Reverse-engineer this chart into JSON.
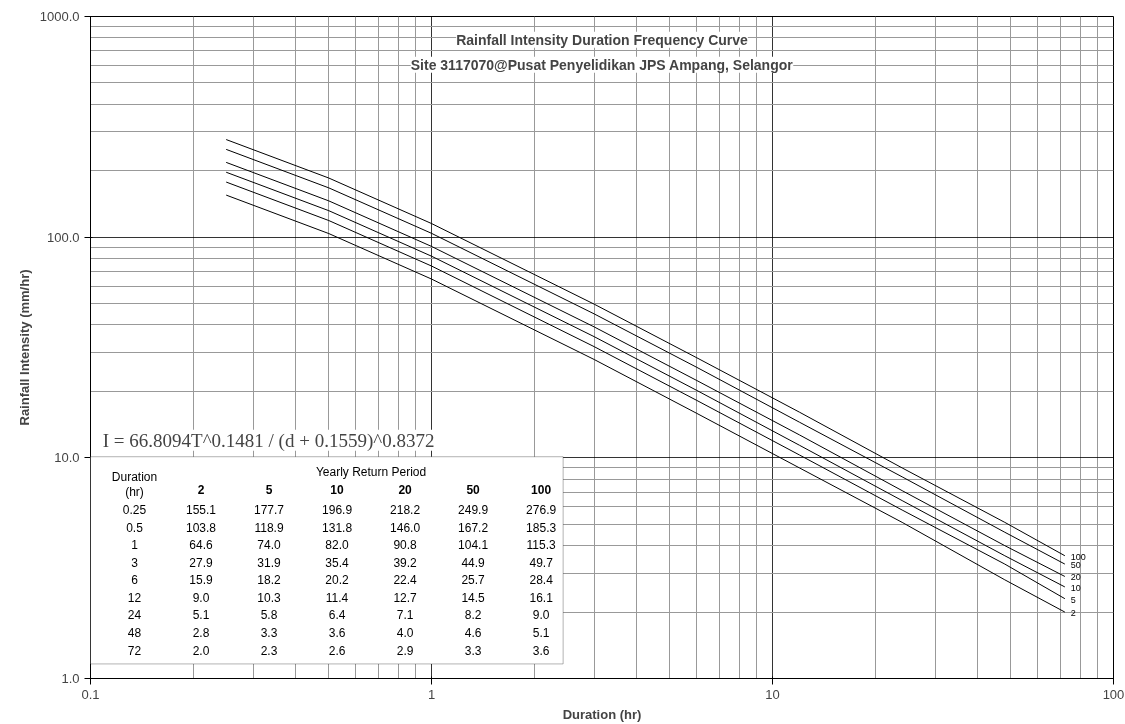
{
  "chart_data": [
    {
      "type": "line",
      "title": "Rainfall Intensity Duration Frequency Curve",
      "subtitle": "Site 3117070@Pusat Penyelidikan JPS Ampang, Selangor",
      "xlabel": "Duration (hr)",
      "ylabel": "Rainfall Intensity (mm/hr)",
      "annotations": [
        "I = 66.8094T^0.1481 / (d + 0.1559)^0.8372"
      ],
      "x": [
        0.25,
        0.5,
        1,
        3,
        6,
        12,
        24,
        48,
        72
      ],
      "series": [
        {
          "name": "2",
          "color": "#000000",
          "values": [
            155.1,
            103.8,
            64.6,
            27.9,
            15.9,
            9.0,
            5.1,
            2.8,
            2.0
          ]
        },
        {
          "name": "5",
          "color": "#000000",
          "values": [
            177.7,
            118.9,
            74.0,
            31.9,
            18.2,
            10.3,
            5.8,
            3.3,
            2.3
          ]
        },
        {
          "name": "10",
          "color": "#000000",
          "values": [
            196.9,
            131.8,
            82.0,
            35.4,
            20.2,
            11.4,
            6.4,
            3.6,
            2.6
          ]
        },
        {
          "name": "20",
          "color": "#000000",
          "values": [
            218.2,
            146.0,
            90.8,
            39.2,
            22.4,
            12.7,
            7.1,
            4.0,
            2.9
          ]
        },
        {
          "name": "50",
          "color": "#000000",
          "values": [
            249.9,
            167.2,
            104.1,
            44.9,
            25.7,
            14.5,
            8.2,
            4.6,
            3.3
          ]
        },
        {
          "name": "100",
          "color": "#000000",
          "values": [
            276.9,
            185.3,
            115.3,
            49.7,
            28.4,
            16.1,
            9.0,
            5.1,
            3.6
          ]
        }
      ],
      "log": "xy",
      "grid": true,
      "marker": "none",
      "line_style": "solid",
      "xlim": [
        0.1,
        100
      ],
      "ylim": [
        1,
        1000
      ],
      "xticks": [
        0.1,
        1,
        10,
        100
      ],
      "yticks": [
        {
          "value": 1,
          "label": "1.0"
        },
        {
          "value": 10,
          "label": "10.0"
        },
        {
          "value": 100,
          "label": "100.0"
        },
        {
          "value": 1000,
          "label": "1000.0"
        }
      ]
    },
    {
      "type": "other",
      "legend_title": "Yearly Return Period",
      "annotations": [
        "Duration",
        "(hr)"
      ],
      "categories": [
        "0.25",
        "0.5",
        "1",
        "3",
        "6",
        "12",
        "24",
        "48",
        "72"
      ],
      "series": [
        {
          "name": "2",
          "color": "#000000",
          "values": [
            155.1,
            103.8,
            64.6,
            27.9,
            15.9,
            9.0,
            5.1,
            2.8,
            2.0
          ],
          "value_labels": [
            "155.1",
            "103.8",
            "64.6",
            "27.9",
            "15.9",
            "9.0",
            "5.1",
            "2.8",
            "2.0"
          ]
        },
        {
          "name": "5",
          "color": "#000000",
          "values": [
            177.7,
            118.9,
            74.0,
            31.9,
            18.2,
            10.3,
            5.8,
            3.3,
            2.3
          ],
          "value_labels": [
            "177.7",
            "118.9",
            "74.0",
            "31.9",
            "18.2",
            "10.3",
            "5.8",
            "3.3",
            "2.3"
          ]
        },
        {
          "name": "10",
          "color": "#000000",
          "values": [
            196.9,
            131.8,
            82.0,
            35.4,
            20.2,
            11.4,
            6.4,
            3.6,
            2.6
          ],
          "value_labels": [
            "196.9",
            "131.8",
            "82.0",
            "35.4",
            "20.2",
            "11.4",
            "6.4",
            "3.6",
            "2.6"
          ]
        },
        {
          "name": "20",
          "color": "#000000",
          "values": [
            218.2,
            146.0,
            90.8,
            39.2,
            22.4,
            12.7,
            7.1,
            4.0,
            2.9
          ],
          "value_labels": [
            "218.2",
            "146.0",
            "90.8",
            "39.2",
            "22.4",
            "12.7",
            "7.1",
            "4.0",
            "2.9"
          ]
        },
        {
          "name": "50",
          "color": "#000000",
          "values": [
            249.9,
            167.2,
            104.1,
            44.9,
            25.7,
            14.5,
            8.2,
            4.6,
            3.3
          ],
          "value_labels": [
            "249.9",
            "167.2",
            "104.1",
            "44.9",
            "25.7",
            "14.5",
            "8.2",
            "4.6",
            "3.3"
          ]
        },
        {
          "name": "100",
          "color": "#000000",
          "values": [
            276.9,
            185.3,
            115.3,
            49.7,
            28.4,
            16.1,
            9.0,
            5.1,
            3.6
          ],
          "value_labels": [
            "276.9",
            "185.3",
            "115.3",
            "49.7",
            "28.4",
            "16.1",
            "9.0",
            "5.1",
            "3.6"
          ]
        }
      ]
    }
  ]
}
